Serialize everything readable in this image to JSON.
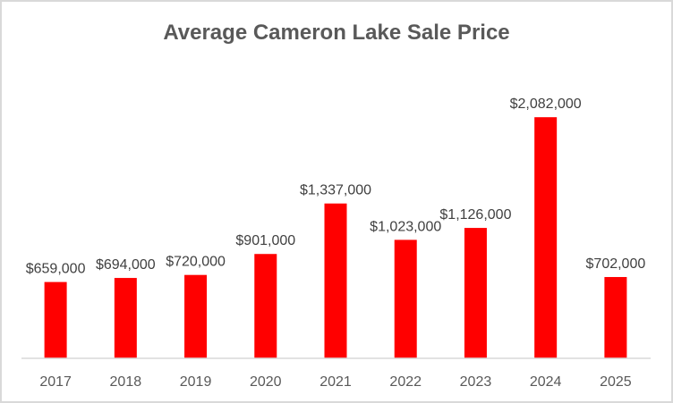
{
  "chart_data": {
    "type": "bar",
    "title": "Average Cameron Lake Sale Price",
    "xlabel": "",
    "ylabel": "",
    "categories": [
      "2017",
      "2018",
      "2019",
      "2020",
      "2021",
      "2022",
      "2023",
      "2024",
      "2025"
    ],
    "values": [
      659000,
      694000,
      720000,
      901000,
      1337000,
      1023000,
      1126000,
      2082000,
      702000
    ],
    "data_labels": [
      "$659,000",
      "$694,000",
      "$720,000",
      "$901,000",
      "$1,337,000",
      "$1,023,000",
      "$1,126,000",
      "$2,082,000",
      "$702,000"
    ],
    "ylim": [
      0,
      2500000
    ],
    "grid": false,
    "legend": "none",
    "bar_color": "#ff0000"
  }
}
